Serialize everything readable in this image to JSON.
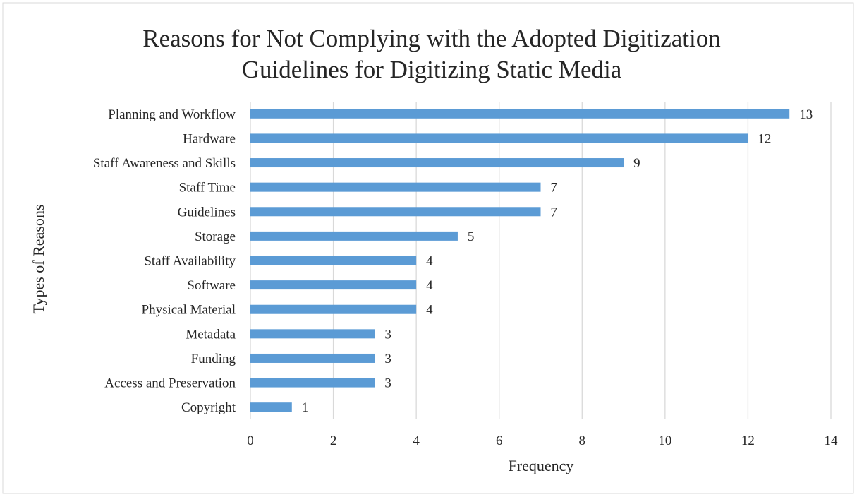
{
  "chart_data": {
    "type": "bar",
    "orientation": "horizontal",
    "title_lines": [
      "Reasons for Not Complying with the Adopted Digitization",
      "Guidelines for Digitizing Static Media"
    ],
    "xlabel": "Frequency",
    "ylabel": "Types of Reasons",
    "categories": [
      "Planning and Workflow",
      "Hardware",
      "Staff Awareness and Skills",
      "Staff Time",
      "Guidelines",
      "Storage",
      "Staff Availability",
      "Software",
      "Physical Material",
      "Metadata",
      "Funding",
      "Access and Preservation",
      "Copyright"
    ],
    "values": [
      13,
      12,
      9,
      7,
      7,
      5,
      4,
      4,
      4,
      3,
      3,
      3,
      1
    ],
    "xlim": [
      0,
      14
    ],
    "xticks": [
      0,
      2,
      4,
      6,
      8,
      10,
      12,
      14
    ],
    "grid": "vertical",
    "legend": "none",
    "data_labels": true,
    "bar_color": "#5b9bd5",
    "grid_color": "#d9d9d9",
    "text_color": "#262626",
    "border_color": "#d9d9d9"
  }
}
